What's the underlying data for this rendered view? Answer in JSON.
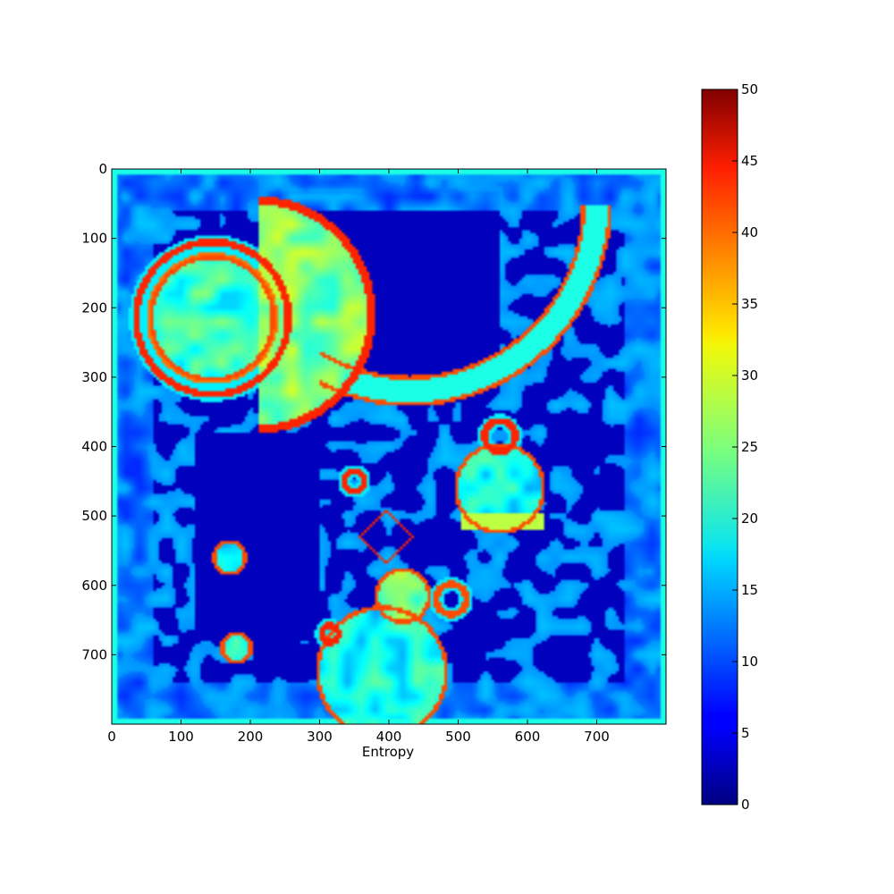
{
  "chart_data": {
    "type": "heatmap",
    "title": "",
    "xlabel": "Entropy",
    "ylabel": "",
    "xlim": [
      0,
      800
    ],
    "ylim": [
      800,
      0
    ],
    "xticks": [
      0,
      100,
      200,
      300,
      400,
      500,
      600,
      700
    ],
    "yticks": [
      0,
      100,
      200,
      300,
      400,
      500,
      600,
      700
    ],
    "grid": false,
    "colormap": "jet",
    "colorbar": {
      "range": [
        0,
        50
      ],
      "ticks": [
        0,
        5,
        10,
        15,
        20,
        25,
        30,
        35,
        40,
        45,
        50
      ]
    },
    "background_level": 3,
    "features": [
      {
        "kind": "ring",
        "cx": 145,
        "cy": 215,
        "r": 110,
        "level": 42
      },
      {
        "kind": "ring",
        "cx": 145,
        "cy": 215,
        "r": 90,
        "level": 38
      },
      {
        "kind": "blob",
        "cx": 145,
        "cy": 215,
        "r": 85,
        "level": 22
      },
      {
        "kind": "half-disc",
        "cx": 210,
        "cy": 210,
        "r": 165,
        "level": 24
      },
      {
        "kind": "arc",
        "cx": 430,
        "cy": 50,
        "r": 270,
        "level": 40
      },
      {
        "kind": "blob",
        "cx": 560,
        "cy": 460,
        "r": 60,
        "level": 20
      },
      {
        "kind": "ring",
        "cx": 560,
        "cy": 385,
        "r": 22,
        "level": 42
      },
      {
        "kind": "band",
        "cx": 565,
        "cy": 510,
        "r": 60,
        "level": 28
      },
      {
        "kind": "ring",
        "cx": 350,
        "cy": 450,
        "r": 14,
        "level": 42
      },
      {
        "kind": "triangle",
        "cx": 395,
        "cy": 530,
        "r": 40,
        "level": 42
      },
      {
        "kind": "blob",
        "cx": 420,
        "cy": 615,
        "r": 35,
        "level": 26
      },
      {
        "kind": "ring",
        "cx": 490,
        "cy": 620,
        "r": 22,
        "level": 40
      },
      {
        "kind": "blob",
        "cx": 390,
        "cy": 725,
        "r": 90,
        "level": 20
      },
      {
        "kind": "ring",
        "cx": 315,
        "cy": 670,
        "r": 12,
        "level": 42
      },
      {
        "kind": "blob",
        "cx": 170,
        "cy": 560,
        "r": 20,
        "level": 20
      },
      {
        "kind": "blob",
        "cx": 180,
        "cy": 690,
        "r": 18,
        "level": 20
      }
    ]
  }
}
